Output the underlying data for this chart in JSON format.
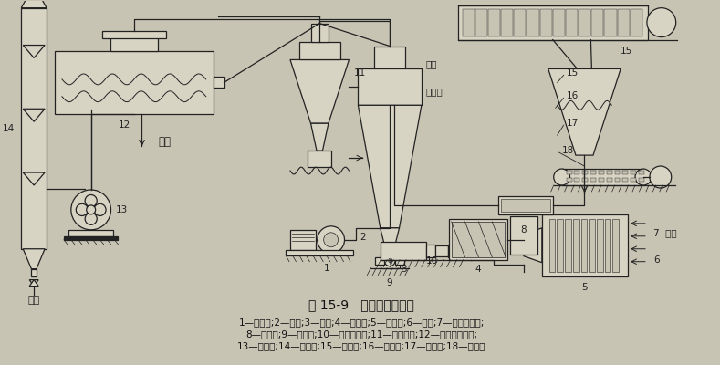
{
  "title": "图 15-9   喷雾干燥流程图",
  "caption_line1": "1—空压机;2—管道;3—底座;4—液化气;5—冷凝水;6—冷风;7—翅片加热器;",
  "caption_line2": "8—转换器;9—喷雾塔;10—三流式喷嘴;11—旋风分离;12—脉冲袋除滤器;",
  "caption_line3": "13—鼓风机;14—溜球塔;15—板滤机;16—储料斗;17—送料器;18—灰浆泵",
  "bg_color": "#c8c4b4",
  "line_color": "#222222",
  "text_color": "#111111",
  "label_color": "#222222",
  "title_fontsize": 10,
  "caption_fontsize": 7.5,
  "figsize": [
    7.89,
    4.0
  ],
  "dpi": 100
}
